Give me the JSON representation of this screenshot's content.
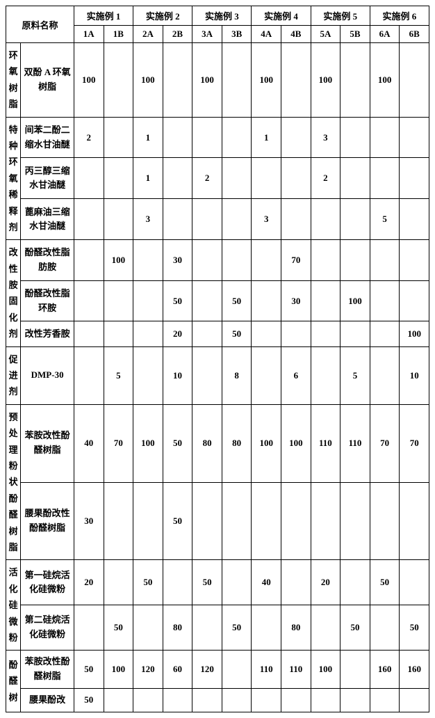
{
  "header": {
    "material_name": "原料名称",
    "examples": [
      "实施例 1",
      "实施例 2",
      "实施例 3",
      "实施例 4",
      "实施例 5",
      "实施例 6"
    ],
    "subcols": [
      "1A",
      "1B",
      "2A",
      "2B",
      "3A",
      "3B",
      "4A",
      "4B",
      "5A",
      "5B",
      "6A",
      "6B"
    ]
  },
  "categories": [
    {
      "label": "环氧树脂",
      "rows": [
        {
          "name": "双酚 A 环氧树脂",
          "vals": [
            "100",
            "",
            "100",
            "",
            "100",
            "",
            "100",
            "",
            "100",
            "",
            "100",
            ""
          ]
        }
      ]
    },
    {
      "label": "特种环氧稀释剂",
      "rows": [
        {
          "name": "间苯二酚二缩水甘油醚",
          "vals": [
            "2",
            "",
            "1",
            "",
            "",
            "",
            "1",
            "",
            "3",
            "",
            "",
            ""
          ]
        },
        {
          "name": "丙三醇三缩水甘油醚",
          "vals": [
            "",
            "",
            "1",
            "",
            "2",
            "",
            "",
            "",
            "2",
            "",
            "",
            ""
          ]
        },
        {
          "name": "蓖麻油三缩水甘油醚",
          "vals": [
            "",
            "",
            "3",
            "",
            "",
            "",
            "3",
            "",
            "",
            "",
            "5",
            ""
          ]
        }
      ]
    },
    {
      "label": "改性胺固化剂",
      "rows": [
        {
          "name": "酚醛改性脂肪胺",
          "vals": [
            "",
            "100",
            "",
            "30",
            "",
            "",
            "",
            "70",
            "",
            "",
            "",
            ""
          ]
        },
        {
          "name": "酚醛改性脂环胺",
          "vals": [
            "",
            "",
            "",
            "50",
            "",
            "50",
            "",
            "30",
            "",
            "100",
            "",
            ""
          ]
        },
        {
          "name": "改性芳香胺",
          "vals": [
            "",
            "",
            "",
            "20",
            "",
            "50",
            "",
            "",
            "",
            "",
            "",
            "100"
          ]
        }
      ]
    },
    {
      "label": "促进剂",
      "rows": [
        {
          "name": "DMP-30",
          "vals": [
            "",
            "5",
            "",
            "10",
            "",
            "8",
            "",
            "6",
            "",
            "5",
            "",
            "10"
          ]
        }
      ]
    },
    {
      "label": "预处理粉状酚醛树脂",
      "rows": [
        {
          "name": "苯胺改性酚醛树脂",
          "vals": [
            "40",
            "70",
            "100",
            "50",
            "80",
            "80",
            "100",
            "100",
            "110",
            "110",
            "70",
            "70"
          ]
        },
        {
          "name": "腰果酚改性酚醛树脂",
          "vals": [
            "30",
            "",
            "",
            "50",
            "",
            "",
            "",
            "",
            "",
            "",
            "",
            ""
          ]
        }
      ]
    },
    {
      "label": "活化硅微粉",
      "rows": [
        {
          "name": "第一硅烷活化硅微粉",
          "vals": [
            "20",
            "",
            "50",
            "",
            "50",
            "",
            "40",
            "",
            "20",
            "",
            "50",
            ""
          ]
        },
        {
          "name": "第二硅烷活化硅微粉",
          "vals": [
            "",
            "50",
            "",
            "80",
            "",
            "50",
            "",
            "80",
            "",
            "50",
            "",
            "50"
          ]
        }
      ]
    },
    {
      "label": "酚醛树",
      "rows": [
        {
          "name": "苯胺改性酚醛树脂",
          "vals": [
            "50",
            "100",
            "120",
            "60",
            "120",
            "",
            "110",
            "110",
            "100",
            "",
            "160",
            "160"
          ]
        },
        {
          "name": "腰果酚改",
          "vals": [
            "50",
            "",
            "",
            "",
            "",
            "",
            "",
            "",
            "",
            "",
            "",
            ""
          ]
        }
      ]
    }
  ]
}
